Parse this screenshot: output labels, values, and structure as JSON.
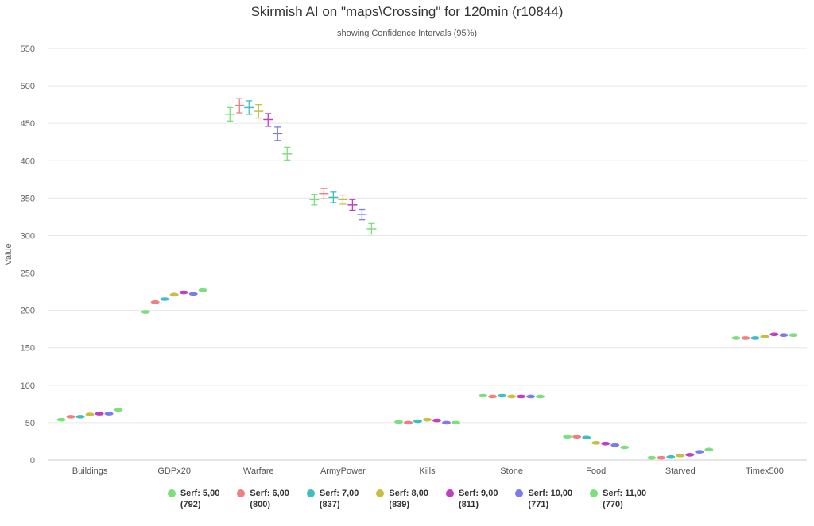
{
  "chart_data": {
    "type": "errorbar",
    "title": "Skirmish AI on \"maps\\Crossing\" for 120min (r10844)",
    "subtitle": "showing Confidence Intervals (95%)",
    "ylabel": "Value",
    "ylim": [
      0,
      550
    ],
    "yticks": [
      0,
      50,
      100,
      150,
      200,
      250,
      300,
      350,
      400,
      450,
      500,
      550
    ],
    "grid": true,
    "legend_position": "bottom",
    "categories": [
      "Buildings",
      "GDPx20",
      "Warfare",
      "ArmyPower",
      "Kills",
      "Stone",
      "Food",
      "Starved",
      "Timex500"
    ],
    "series": [
      {
        "name": "Serf: 5,00",
        "count": "(792)",
        "color": "#7be07b",
        "values": [
          54,
          198,
          462,
          348,
          51,
          86,
          31,
          3,
          163
        ],
        "low": [
          53,
          197,
          453,
          341,
          50,
          85,
          30,
          2.5,
          162
        ],
        "high": [
          55,
          199,
          471,
          355,
          52,
          87,
          32,
          3.5,
          164
        ]
      },
      {
        "name": "Serf: 6,00",
        "count": "(800)",
        "color": "#f07f7f",
        "values": [
          58,
          211,
          474,
          356,
          50,
          85,
          31,
          3,
          163
        ],
        "low": [
          57,
          210,
          464,
          349,
          49,
          84,
          30,
          2.5,
          162
        ],
        "high": [
          59,
          212,
          483,
          363,
          51,
          86,
          32,
          3.5,
          164
        ]
      },
      {
        "name": "Serf: 7,00",
        "count": "(837)",
        "color": "#3dbfbf",
        "values": [
          58,
          215,
          471,
          351,
          52,
          86,
          30,
          4,
          163
        ],
        "low": [
          57,
          214,
          462,
          344,
          51,
          85,
          29,
          3.5,
          162
        ],
        "high": [
          59,
          216,
          480,
          358,
          53,
          87,
          31,
          4.5,
          164
        ]
      },
      {
        "name": "Serf: 8,00",
        "count": "(839)",
        "color": "#c8bf3f",
        "values": [
          61,
          221,
          466,
          348,
          54,
          85,
          23,
          6,
          165
        ],
        "low": [
          60,
          220,
          457,
          342,
          53,
          84,
          22,
          5.5,
          164
        ],
        "high": [
          62,
          222,
          475,
          354,
          55,
          86,
          24,
          6.5,
          166
        ]
      },
      {
        "name": "Serf: 9,00",
        "count": "(811)",
        "color": "#bf3fbf",
        "values": [
          62,
          224,
          455,
          341,
          53,
          85,
          22,
          7,
          168
        ],
        "low": [
          61,
          223,
          446,
          334,
          52,
          84,
          21,
          6.5,
          167
        ],
        "high": [
          63,
          225,
          463,
          348,
          54,
          86,
          23,
          7.5,
          169
        ]
      },
      {
        "name": "Serf: 10,00",
        "count": "(771)",
        "color": "#7b7bef",
        "values": [
          62,
          222,
          436,
          328,
          50,
          85,
          20,
          11,
          167
        ],
        "low": [
          61,
          221,
          427,
          321,
          49,
          84,
          19,
          10.5,
          166
        ],
        "high": [
          63,
          223,
          445,
          335,
          51,
          86,
          21,
          11.5,
          168
        ]
      },
      {
        "name": "Serf: 11,00",
        "count": "(770)",
        "color": "#7be07b",
        "values": [
          67,
          227,
          409,
          309,
          50,
          85,
          17,
          14,
          167
        ],
        "low": [
          66,
          226,
          401,
          302,
          49,
          84,
          16,
          13.5,
          166
        ],
        "high": [
          68,
          228,
          418,
          316,
          51,
          86,
          18,
          14.5,
          168
        ]
      }
    ]
  }
}
